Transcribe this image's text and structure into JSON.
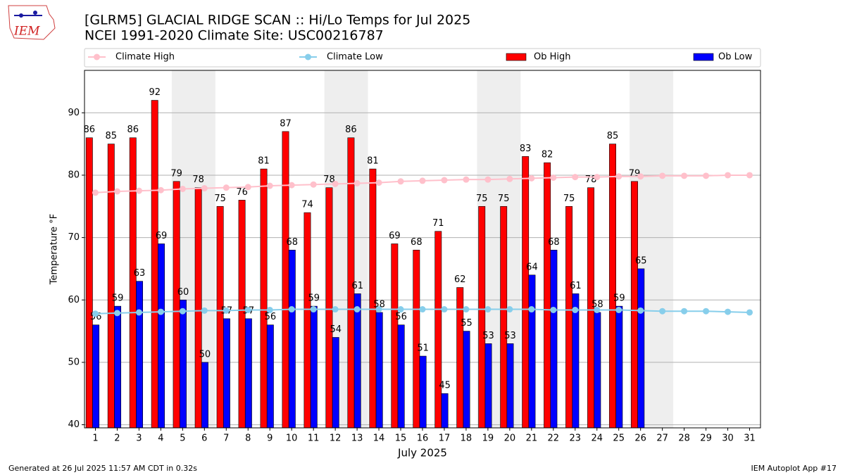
{
  "chart_data": {
    "type": "bar",
    "logo": "IEM",
    "title": "[GLRM5] GLACIAL RIDGE SCAN :: Hi/Lo Temps for Jul 2025",
    "subtitle": "NCEI 1991-2020 Climate Site: USC00216787",
    "xlabel": "July 2025",
    "ylabel": "Temperature °F",
    "footer_left": "Generated at 26 Jul 2025 11:57 AM CDT in 0.32s",
    "footer_right": "IEM Autoplot App #17",
    "x": [
      1,
      2,
      3,
      4,
      5,
      6,
      7,
      8,
      9,
      10,
      11,
      12,
      13,
      14,
      15,
      16,
      17,
      18,
      19,
      20,
      21,
      22,
      23,
      24,
      25,
      26,
      27,
      28,
      29,
      30,
      31
    ],
    "xlim": [
      0.5,
      31.5
    ],
    "xticks": [
      1,
      2,
      3,
      4,
      5,
      6,
      7,
      8,
      9,
      10,
      11,
      12,
      13,
      14,
      15,
      16,
      17,
      18,
      19,
      20,
      21,
      22,
      23,
      24,
      25,
      26,
      27,
      28,
      29,
      30,
      31
    ],
    "ylim": [
      39.5,
      96.8
    ],
    "yticks": [
      40,
      50,
      60,
      70,
      80,
      90
    ],
    "grid": true,
    "shaded": [
      [
        5,
        6
      ],
      [
        12,
        13
      ],
      [
        19,
        20
      ],
      [
        26,
        27
      ]
    ],
    "series": [
      {
        "name": "Climate High",
        "type": "line",
        "color": "#ffc0cb",
        "values": [
          77.2,
          77.4,
          77.5,
          77.6,
          77.8,
          77.9,
          78.0,
          78.1,
          78.3,
          78.4,
          78.5,
          78.6,
          78.7,
          78.8,
          79.0,
          79.1,
          79.2,
          79.3,
          79.3,
          79.4,
          79.5,
          79.6,
          79.7,
          79.7,
          79.8,
          79.8,
          79.9,
          79.9,
          79.9,
          80.0,
          80.0
        ]
      },
      {
        "name": "Climate Low",
        "type": "line",
        "color": "#87ceeb",
        "values": [
          57.8,
          57.9,
          58.0,
          58.1,
          58.2,
          58.3,
          58.3,
          58.4,
          58.4,
          58.5,
          58.5,
          58.5,
          58.5,
          58.5,
          58.5,
          58.5,
          58.5,
          58.5,
          58.5,
          58.5,
          58.5,
          58.4,
          58.4,
          58.4,
          58.4,
          58.3,
          58.2,
          58.2,
          58.2,
          58.1,
          58.0
        ]
      },
      {
        "name": "Ob High",
        "type": "bar",
        "color": "#ff0000",
        "values": [
          86,
          85,
          86,
          92,
          79,
          78,
          75,
          76,
          81,
          87,
          74,
          78,
          86,
          81,
          69,
          68,
          71,
          62,
          75,
          75,
          83,
          82,
          75,
          78,
          85,
          79,
          null,
          null,
          null,
          null,
          null
        ]
      },
      {
        "name": "Ob Low",
        "type": "bar",
        "color": "#0000ff",
        "values": [
          56,
          59,
          63,
          69,
          60,
          50,
          57,
          57,
          56,
          68,
          59,
          54,
          61,
          58,
          56,
          51,
          45,
          55,
          53,
          53,
          64,
          68,
          61,
          58,
          59,
          65,
          null,
          null,
          null,
          null,
          null
        ]
      }
    ]
  }
}
